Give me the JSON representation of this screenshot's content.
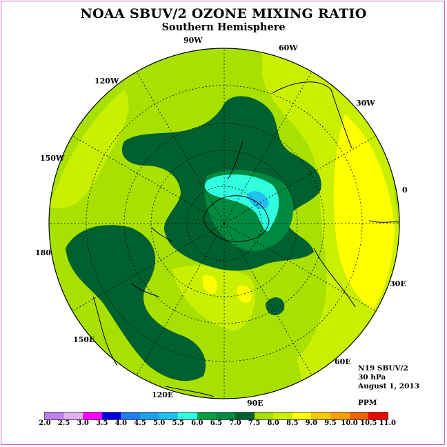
{
  "title": "NOAA SBUV/2 OZONE MIXING RATIO",
  "subtitle": "Southern Hemisphere",
  "longitude_labels": [
    "90W",
    "60W",
    "30W",
    "0",
    "30E",
    "60E",
    "90E",
    "120E",
    "150E",
    "180",
    "150W",
    "120W"
  ],
  "info": {
    "instrument": "N19 SBUV/2",
    "level": "30 hPa",
    "date": "August 1, 2013",
    "units": "PPM"
  },
  "colorbar": {
    "ticks": [
      "2.0",
      "2.5",
      "3.0",
      "3.5",
      "4.0",
      "4.5",
      "5.0",
      "5.5",
      "6.0",
      "6.5",
      "7.0",
      "7.5",
      "8.0",
      "8.5",
      "9.0",
      "9.5",
      "10.0",
      "10.5",
      "11.0"
    ],
    "colors": [
      "#c080f0",
      "#e0b0f0",
      "#ff00ff",
      "#0000e0",
      "#1e7ef0",
      "#1ea0f0",
      "#20c0f0",
      "#30ffe0",
      "#00a040",
      "#008a40",
      "#006030",
      "#a8e000",
      "#c8f000",
      "#ffff00",
      "#f8c800",
      "#f8a000",
      "#f06000",
      "#f00000",
      "#7a4a30"
    ]
  },
  "map": {
    "projection": "south-polar-stereographic",
    "outer_fill_level": "7.5-8.0",
    "regions": [
      {
        "name": "dark-green-vortex",
        "level": "7.0-7.5",
        "color": "#006030"
      },
      {
        "name": "medium-green",
        "level": "6.5-7.0",
        "color": "#008a40"
      },
      {
        "name": "cyan-core",
        "level": "5.5-6.0",
        "color": "#30ffe0"
      },
      {
        "name": "blue-core",
        "level": "5.0-5.5",
        "color": "#20c0f0"
      },
      {
        "name": "yellow-region",
        "level": "8.5-9.0",
        "color": "#ffff00"
      },
      {
        "name": "lime-region",
        "level": "8.0-8.5",
        "color": "#c8f000"
      }
    ]
  }
}
